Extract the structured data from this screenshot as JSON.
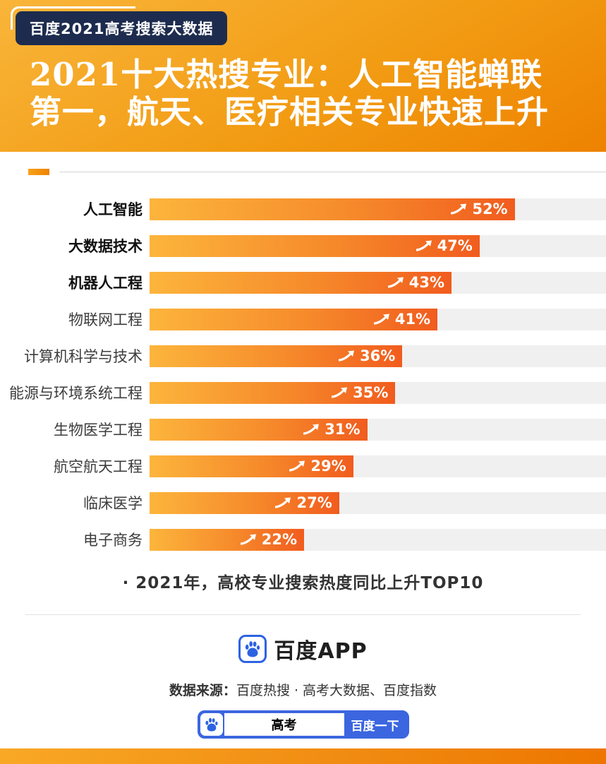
{
  "page": {
    "badge": "百度2021高考搜索大数据",
    "title_line1": "2021十大热搜专业：人工智能蝉联",
    "title_line2": "第一，航天、医疗相关专业快速上升"
  },
  "chart_data": {
    "type": "bar",
    "orientation": "horizontal",
    "title": "2021年，高校专业搜索热度同比上升TOP10",
    "unit": "%",
    "xlim": [
      0,
      65
    ],
    "categories": [
      "人工智能",
      "大数据技术",
      "机器人工程",
      "物联网工程",
      "计算机科学与技术",
      "能源与环境系统工程",
      "生物医学工程",
      "航空航天工程",
      "临床医学",
      "电子商务"
    ],
    "values": [
      52,
      47,
      43,
      41,
      36,
      35,
      31,
      29,
      27,
      22
    ],
    "emphasized_count": 3,
    "bar_gradient": [
      "#fcb53c",
      "#f15c1e"
    ],
    "track_color": "#f0f0f0",
    "legend": "none",
    "grid": false
  },
  "caption": "· 2021年，高校专业搜索热度同比上升TOP10",
  "footer": {
    "app_name": "百度APP",
    "source_label": "数据来源：",
    "source_text": "百度热搜 · 高考大数据、百度指数",
    "search": {
      "query": "高考",
      "button": "百度一下"
    }
  },
  "colors": {
    "header_gradient": [
      "#f9b53a",
      "#ee8200"
    ],
    "badge_bg": "#1d2c4e",
    "baidu_blue": "#2d63e2",
    "bottom_strip": [
      "#f9a825",
      "#ee7600"
    ]
  }
}
